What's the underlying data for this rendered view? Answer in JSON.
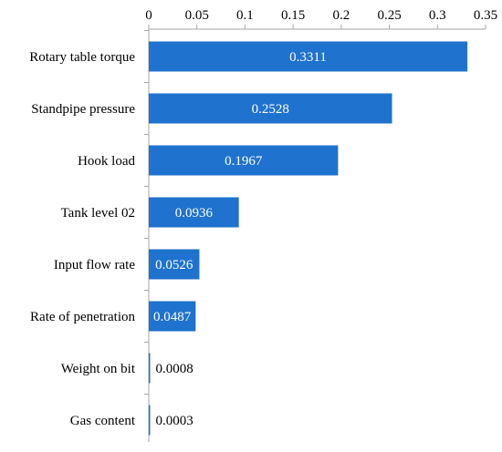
{
  "chart_data": {
    "type": "bar",
    "orientation": "horizontal",
    "title": "",
    "xlabel": "",
    "ylabel": "",
    "categories": [
      "Rotary table torque",
      "Standpipe pressure",
      "Hook load",
      "Tank level 02",
      "Input flow rate",
      "Rate of penetration",
      "Weight on bit",
      "Gas content"
    ],
    "values": [
      0.3311,
      0.2528,
      0.1967,
      0.0936,
      0.0526,
      0.0487,
      0.0008,
      0.0003
    ],
    "data_labels": [
      "0.3311",
      "0.2528",
      "0.1967",
      "0.0936",
      "0.0526",
      "0.0487",
      "0.0008",
      "0.0003"
    ],
    "xlim": [
      0,
      0.35
    ],
    "xticks": [
      0,
      0.05,
      0.1,
      0.15,
      0.2,
      0.25,
      0.3,
      0.35
    ],
    "xtick_labels": [
      "0",
      "0.05",
      "0.1",
      "0.15",
      "0.2",
      "0.25",
      "0.3",
      "0.35"
    ],
    "x_axis_position": "top",
    "grid": false,
    "legend": "none",
    "bar_color": "#1F72CD",
    "axis_color": "#A6A6A6"
  }
}
